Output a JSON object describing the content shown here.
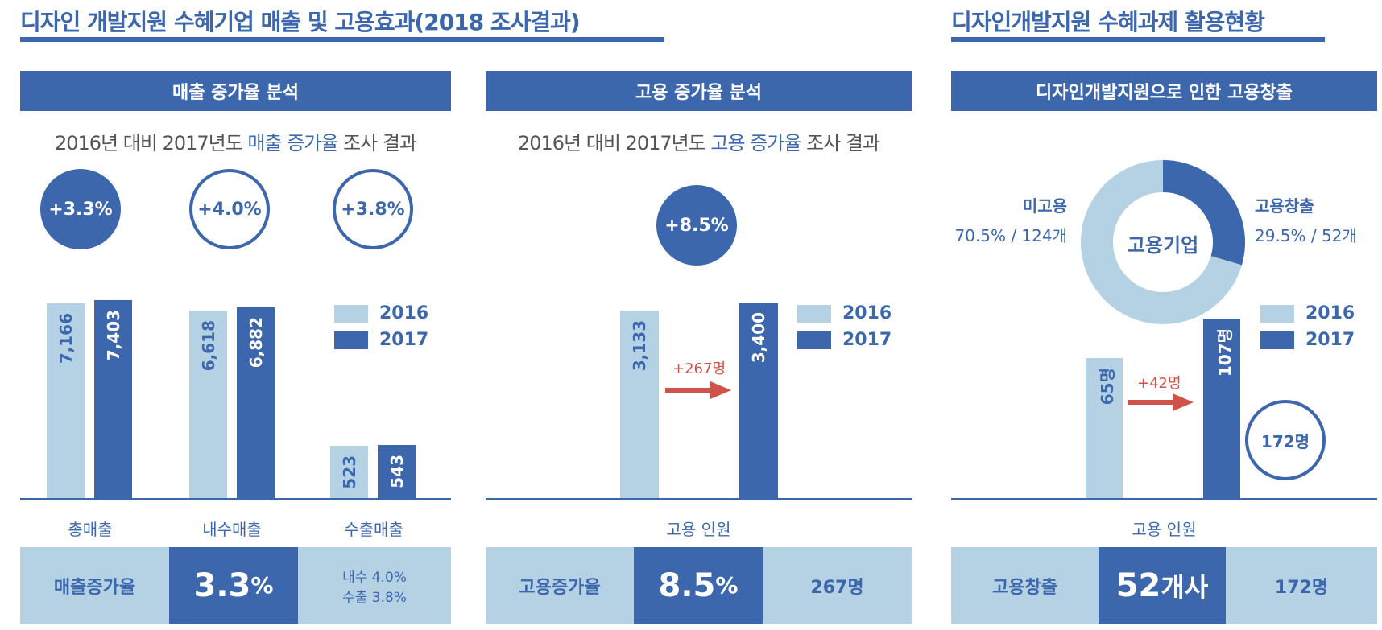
{
  "title_left": "디자인 개발지원 수혜기업 매출 및 고용효과(2018 조사결과)",
  "title_right": "디자인개발지원 수혜과제 활용현황",
  "colors": {
    "dark": "#3d67ad",
    "light": "#b5d2e4",
    "arrow": "#d0534a"
  },
  "panel1": {
    "header": "매출 증가율 분석",
    "subtitle_pre": "2016년 대비 2017년도 ",
    "subtitle_hl": "매출 증가율",
    "subtitle_post": " 조사 결과",
    "circles": [
      "+3.3%",
      "+4.0%",
      "+3.8%"
    ],
    "bottom": {
      "label": "매출증가율",
      "value": "3.3",
      "unit": "%",
      "note1": "내수 4.0%",
      "note2": "수출 3.8%"
    }
  },
  "panel2": {
    "header": "고용 증가율 분석",
    "subtitle_pre": "2016년 대비 2017년도 ",
    "subtitle_hl": "고용 증가율",
    "subtitle_post": " 조사 결과",
    "circle": "+8.5%",
    "arrow_label": "+267명",
    "bottom": {
      "label": "고용증가율",
      "value": "8.5",
      "unit": "%",
      "right": "267명"
    }
  },
  "panel3": {
    "header": "디자인개발지원으로 인한 고용창출",
    "donut_center": "고용기업",
    "arrow_label": "+42명",
    "circle": "172명",
    "bottom": {
      "label": "고용창출",
      "value": "52",
      "unit": "개사",
      "right": "172명"
    }
  },
  "chart_data": [
    {
      "type": "bar",
      "categories": [
        "총매출",
        "내수매출",
        "수출매출"
      ],
      "series": [
        {
          "name": "2016",
          "values": [
            7166,
            6618,
            523
          ],
          "labels": [
            "7,166",
            "6,618",
            "523"
          ]
        },
        {
          "name": "2017",
          "values": [
            7403,
            6882,
            543
          ],
          "labels": [
            "7,403",
            "6,882",
            "543"
          ]
        }
      ],
      "legend": "right"
    },
    {
      "type": "bar",
      "categories": [
        "고용 인원"
      ],
      "series": [
        {
          "name": "2016",
          "values": [
            3133
          ],
          "labels": [
            "3,133"
          ]
        },
        {
          "name": "2017",
          "values": [
            3400
          ],
          "labels": [
            "3,400"
          ]
        }
      ],
      "legend": "right"
    },
    {
      "type": "bar",
      "categories": [
        "고용 인원"
      ],
      "series": [
        {
          "name": "2016",
          "values": [
            65
          ],
          "labels": [
            "65명"
          ]
        },
        {
          "name": "2017",
          "values": [
            107
          ],
          "labels": [
            "107명"
          ]
        }
      ],
      "legend": "right"
    },
    {
      "type": "pie",
      "donut": true,
      "slices": [
        {
          "name": "고용창출",
          "percent": 29.5,
          "count_label": "29.5% / 52개"
        },
        {
          "name": "미고용",
          "percent": 70.5,
          "count_label": "70.5% / 124개"
        }
      ]
    }
  ]
}
